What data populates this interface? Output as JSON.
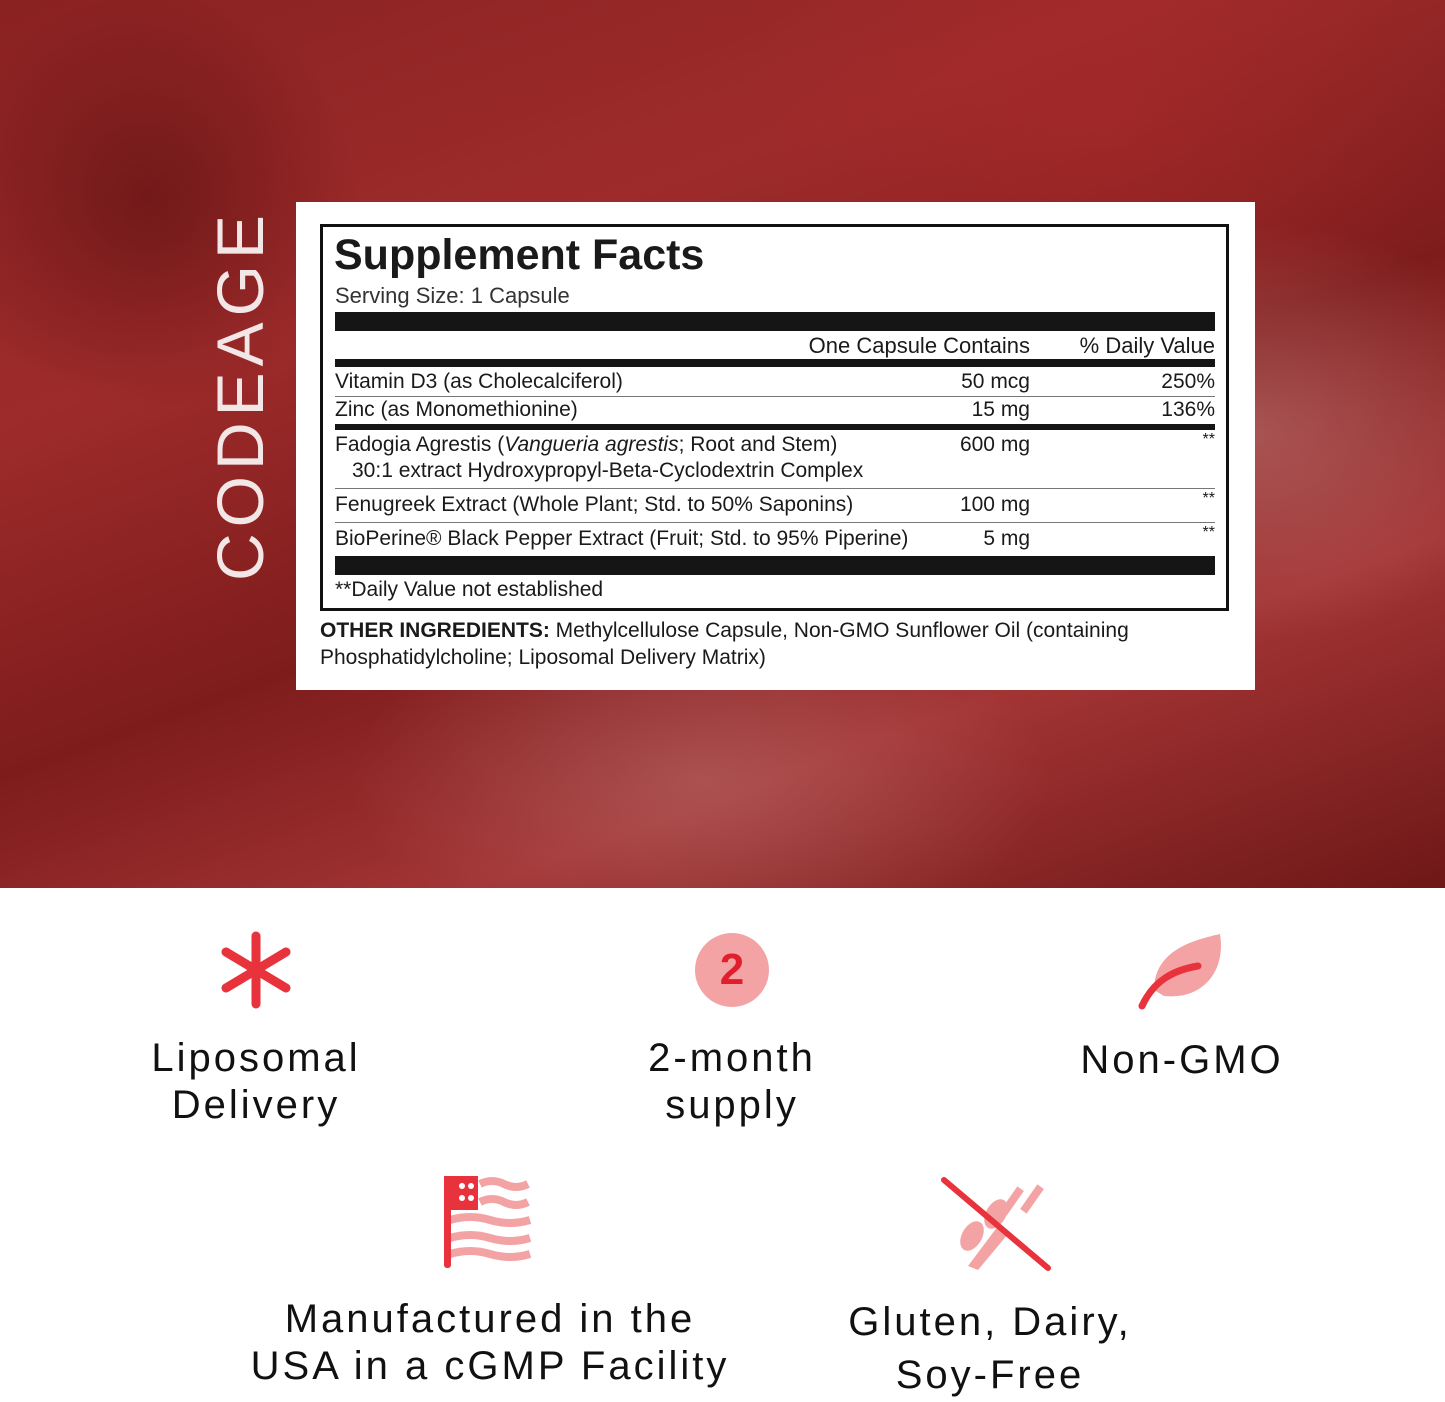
{
  "brand": "CODEAGE",
  "facts": {
    "title": "Supplement Facts",
    "serving_size": "Serving Size: 1 Capsule",
    "col_amount": "One Capsule Contains",
    "col_dv": "% Daily Value",
    "rows": [
      {
        "name": "Vitamin D3 (as Cholecalciferol)",
        "amount": "50 mcg",
        "dv": "250%"
      },
      {
        "name": "Zinc (as Monomethionine)",
        "amount": "15 mg",
        "dv": "136%"
      },
      {
        "name_pre": "Fadogia Agrestis (",
        "name_italic": "Vangueria agrestis",
        "name_post": "; Root and Stem)",
        "name_line2": "30:1 extract Hydroxypropyl-Beta-Cyclodextrin Complex",
        "amount": "600 mg",
        "dv": "**"
      },
      {
        "name": "Fenugreek Extract (Whole Plant; Std. to 50% Saponins)",
        "amount": "100 mg",
        "dv": "**"
      },
      {
        "name": "BioPerine® Black Pepper Extract (Fruit; Std. to 95% Piperine)",
        "amount": "5 mg",
        "dv": "**"
      }
    ],
    "footnote": "**Daily Value not established",
    "other_label": "OTHER INGREDIENTS:",
    "other_text": " Methylcellulose Capsule, Non-GMO Sunflower Oil (containing",
    "other_text2": "Phosphatidylcholine; Liposomal Delivery Matrix)"
  },
  "features": [
    {
      "icon": "asterisk-icon",
      "line1": "Liposomal",
      "line2": "Delivery"
    },
    {
      "icon": "number-2-circle-icon",
      "badge": "2",
      "line1": "2-month",
      "line2": "supply"
    },
    {
      "icon": "leaf-icon",
      "line1": "Non-GMO",
      "line2": ""
    },
    {
      "icon": "flag-icon",
      "line1": "Manufactured in the",
      "line2": "USA in a cGMP Facility"
    },
    {
      "icon": "no-wheat-icon",
      "line1": "Gluten, Dairy,",
      "line2": "Soy-Free"
    }
  ],
  "colors": {
    "accent": "#e8323c",
    "accent_light": "#f4a3a5",
    "hero": "#8a2222"
  }
}
